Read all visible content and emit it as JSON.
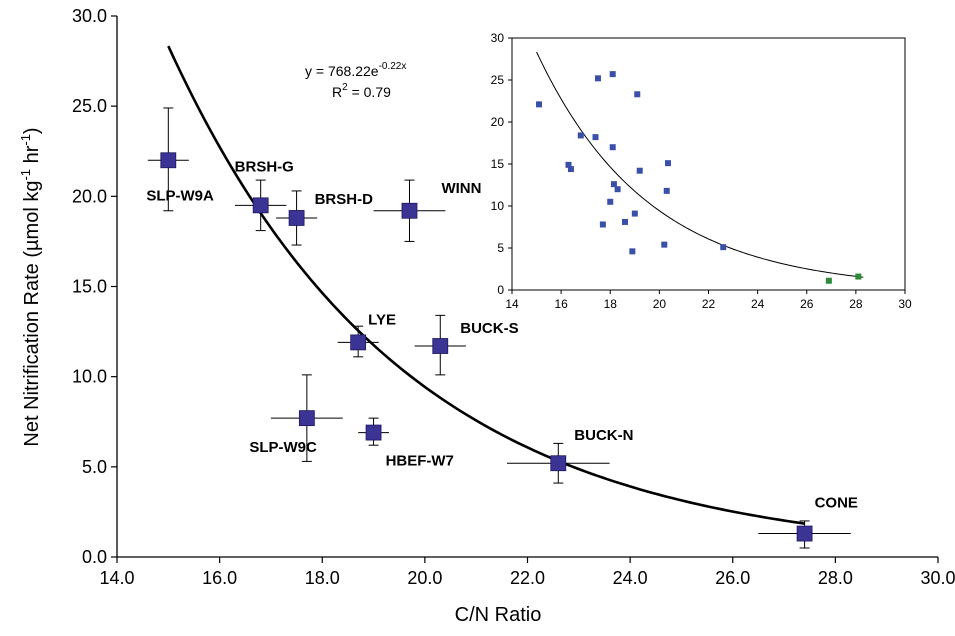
{
  "chart_data": [
    {
      "type": "scatter",
      "xlabel": "C/N Ratio",
      "ylabel": "Net Nitrification Rate (µmol kg-1 hr-1)",
      "ylabel_parts": {
        "main": "Net Nitrification Rate (µmol kg",
        "sup1": "-1",
        "mid": " hr",
        "sup2": "-1",
        "end": ")"
      },
      "xlim": [
        14.0,
        30.0
      ],
      "ylim": [
        0.0,
        30.0
      ],
      "x_ticks": [
        "14.0",
        "16.0",
        "18.0",
        "20.0",
        "22.0",
        "24.0",
        "26.0",
        "28.0",
        "30.0"
      ],
      "y_ticks": [
        "0.0",
        "5.0",
        "10.0",
        "15.0",
        "20.0",
        "25.0",
        "30.0"
      ],
      "grid": false,
      "marker_color": "#3c3494",
      "series": [
        {
          "points": [
            {
              "label": "SLP-W9A",
              "x": 15.0,
              "y": 22.0,
              "y_err": [
                19.2,
                24.9
              ],
              "x_err": [
                14.6,
                15.4
              ]
            },
            {
              "label": "BRSH-G",
              "x": 16.8,
              "y": 19.5,
              "y_err": [
                18.1,
                20.9
              ],
              "x_err": [
                16.3,
                17.3
              ]
            },
            {
              "label": "BRSH-D",
              "x": 17.5,
              "y": 18.8,
              "y_err": [
                17.3,
                20.3
              ],
              "x_err": [
                17.1,
                17.9
              ]
            },
            {
              "label": "WINN",
              "x": 19.7,
              "y": 19.2,
              "y_err": [
                17.5,
                20.9
              ],
              "x_err": [
                19.0,
                20.4
              ]
            },
            {
              "label": "LYE",
              "x": 18.7,
              "y": 11.9,
              "y_err": [
                11.1,
                12.8
              ],
              "x_err": [
                18.3,
                19.1
              ]
            },
            {
              "label": "BUCK-S",
              "x": 20.3,
              "y": 11.7,
              "y_err": [
                10.1,
                13.4
              ],
              "x_err": [
                19.8,
                20.8
              ]
            },
            {
              "label": "SLP-W9C",
              "x": 17.7,
              "y": 7.7,
              "y_err": [
                5.3,
                10.1
              ],
              "x_err": [
                17.0,
                18.4
              ]
            },
            {
              "label": "HBEF-W7",
              "x": 19.0,
              "y": 6.9,
              "y_err": [
                6.2,
                7.7
              ],
              "x_err": [
                18.7,
                19.3
              ]
            },
            {
              "label": "BUCK-N",
              "x": 22.6,
              "y": 5.2,
              "y_err": [
                4.1,
                6.3
              ],
              "x_err": [
                21.6,
                23.6
              ]
            },
            {
              "label": "CONE",
              "x": 27.4,
              "y": 1.3,
              "y_err": [
                0.5,
                2.0
              ],
              "x_err": [
                26.5,
                28.3
              ]
            }
          ]
        }
      ],
      "fit": {
        "type": "exponential",
        "a": 768.22,
        "b": -0.22,
        "x_range": [
          15.0,
          27.4
        ],
        "equation_text": {
          "prefix": "y = 768.22e",
          "exp": "-0.22x"
        },
        "r2_text": {
          "prefix": "R",
          "sup": "2",
          "suffix": " = 0.79"
        }
      }
    },
    {
      "type": "scatter",
      "inset": true,
      "xlim": [
        14,
        30
      ],
      "ylim": [
        0,
        30
      ],
      "x_ticks": [
        "14",
        "16",
        "18",
        "20",
        "22",
        "24",
        "26",
        "28",
        "30"
      ],
      "y_ticks": [
        "0",
        "5",
        "10",
        "15",
        "20",
        "25",
        "30"
      ],
      "series": [
        {
          "color": "#3a4fa8",
          "points": [
            [
              15.1,
              22.1
            ],
            [
              16.3,
              14.9
            ],
            [
              16.4,
              14.4
            ],
            [
              16.8,
              18.4
            ],
            [
              17.4,
              18.2
            ],
            [
              17.5,
              25.2
            ],
            [
              17.7,
              7.8
            ],
            [
              18.0,
              10.5
            ],
            [
              18.1,
              17.0
            ],
            [
              18.1,
              25.7
            ],
            [
              18.15,
              12.6
            ],
            [
              18.3,
              12.0
            ],
            [
              18.6,
              8.1
            ],
            [
              18.9,
              4.6
            ],
            [
              19.0,
              9.1
            ],
            [
              19.1,
              23.3
            ],
            [
              19.2,
              14.2
            ],
            [
              20.2,
              5.4
            ],
            [
              20.3,
              11.8
            ],
            [
              20.35,
              15.1
            ],
            [
              22.6,
              5.1
            ]
          ]
        },
        {
          "color": "#2e8a3a",
          "points": [
            [
              26.9,
              1.1
            ],
            [
              28.1,
              1.6
            ]
          ]
        }
      ],
      "fit": {
        "type": "exponential",
        "a": 768.22,
        "b": -0.22,
        "x_range": [
          15.0,
          28.3
        ]
      }
    }
  ]
}
